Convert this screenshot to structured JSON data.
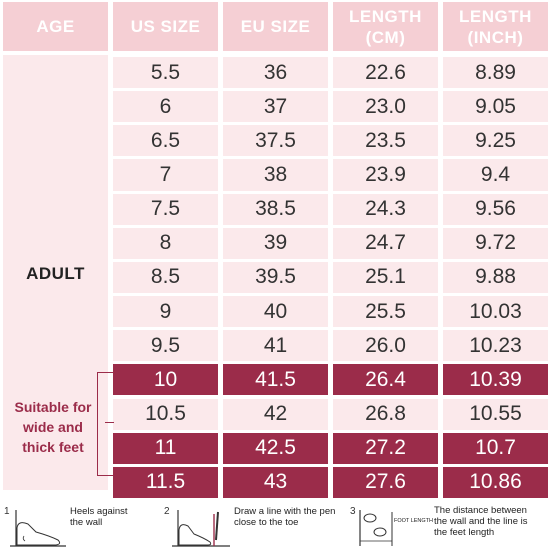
{
  "headers": [
    "AGE",
    "US SIZE",
    "EU SIZE",
    "LENGTH\n(CM)",
    "LENGTH\n(INCH)"
  ],
  "age_label": "ADULT",
  "note_lines": [
    "Suitable for",
    "wide and",
    "thick feet"
  ],
  "rows": [
    {
      "us": "5.5",
      "eu": "36",
      "cm": "22.6",
      "inch": "8.89",
      "highlight": false
    },
    {
      "us": "6",
      "eu": "37",
      "cm": "23.0",
      "inch": "9.05",
      "highlight": false
    },
    {
      "us": "6.5",
      "eu": "37.5",
      "cm": "23.5",
      "inch": "9.25",
      "highlight": false
    },
    {
      "us": "7",
      "eu": "38",
      "cm": "23.9",
      "inch": "9.4",
      "highlight": false
    },
    {
      "us": "7.5",
      "eu": "38.5",
      "cm": "24.3",
      "inch": "9.56",
      "highlight": false
    },
    {
      "us": "8",
      "eu": "39",
      "cm": "24.7",
      "inch": "9.72",
      "highlight": false
    },
    {
      "us": "8.5",
      "eu": "39.5",
      "cm": "25.1",
      "inch": "9.88",
      "highlight": false
    },
    {
      "us": "9",
      "eu": "40",
      "cm": "25.5",
      "inch": "10.03",
      "highlight": false
    },
    {
      "us": "9.5",
      "eu": "41",
      "cm": "26.0",
      "inch": "10.23",
      "highlight": false
    },
    {
      "us": "10",
      "eu": "41.5",
      "cm": "26.4",
      "inch": "10.39",
      "highlight": true
    },
    {
      "us": "10.5",
      "eu": "42",
      "cm": "26.8",
      "inch": "10.55",
      "highlight": false
    },
    {
      "us": "11",
      "eu": "42.5",
      "cm": "27.2",
      "inch": "10.7",
      "highlight": true
    },
    {
      "us": "11.5",
      "eu": "43",
      "cm": "27.6",
      "inch": "10.86",
      "highlight": true
    }
  ],
  "colors": {
    "header": "#f5cfd4",
    "light_row": "#fbe9eb",
    "highlight_row": "#9b2c4a"
  },
  "steps": [
    {
      "num": "1",
      "text": "Heels against\nthe wall"
    },
    {
      "num": "2",
      "text": "Draw a line with the pen\nclose to the toe"
    },
    {
      "num": "3",
      "text": "The distance between\nthe wall and the line is\nthe feet length",
      "icon_label": "FOOT LENGTH"
    }
  ],
  "chart_data": {
    "type": "table",
    "columns": [
      "AGE",
      "US SIZE",
      "EU SIZE",
      "LENGTH (CM)",
      "LENGTH (INCH)"
    ],
    "age": "ADULT",
    "us_size": [
      "5.5",
      "6",
      "6.5",
      "7",
      "7.5",
      "8",
      "8.5",
      "9",
      "9.5",
      "10",
      "10.5",
      "11",
      "11.5"
    ],
    "eu_size": [
      "36",
      "37",
      "37.5",
      "38",
      "38.5",
      "39",
      "39.5",
      "40",
      "41",
      "41.5",
      "42",
      "42.5",
      "43"
    ],
    "length_cm": [
      22.6,
      23.0,
      23.5,
      23.9,
      24.3,
      24.7,
      25.1,
      25.5,
      26.0,
      26.4,
      26.8,
      27.2,
      27.6
    ],
    "length_inch": [
      8.89,
      9.05,
      9.25,
      9.4,
      9.56,
      9.72,
      9.88,
      10.03,
      10.23,
      10.39,
      10.55,
      10.7,
      10.86
    ],
    "highlighted_rows_us": [
      "10",
      "11",
      "11.5"
    ],
    "annotation": "Suitable for wide and thick feet"
  }
}
